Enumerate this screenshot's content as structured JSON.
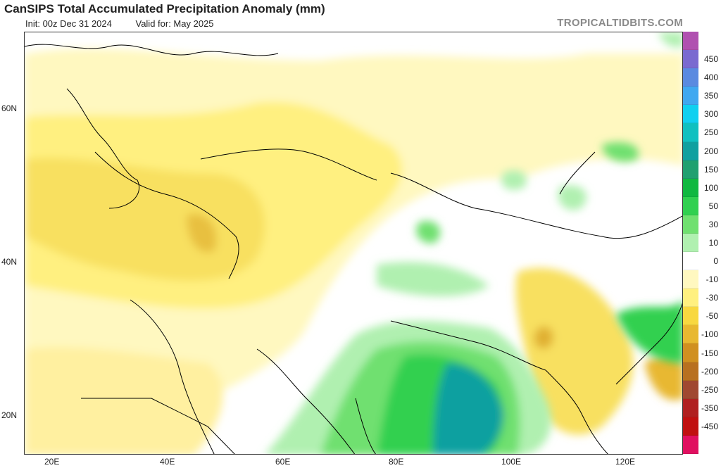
{
  "header": {
    "title": "CanSIPS Total Accumulated Precipitation Anomaly (mm)",
    "init": "Init: 00z Dec 31 2024",
    "valid": "Valid for: May 2025",
    "brand": "TROPICALTIDBITS.COM"
  },
  "axes": {
    "lat_labels": [
      "60N",
      "40N",
      "20N"
    ],
    "lon_labels": [
      "20E",
      "40E",
      "60E",
      "80E",
      "100E",
      "120E"
    ]
  },
  "colorbar": {
    "labels": [
      "450",
      "400",
      "350",
      "300",
      "250",
      "200",
      "150",
      "100",
      "50",
      "30",
      "10",
      "0",
      "-10",
      "-30",
      "-50",
      "-100",
      "-150",
      "-200",
      "-250",
      "-350",
      "-450"
    ],
    "colors": [
      "#b050b0",
      "#7a6ad0",
      "#5a8ae0",
      "#40a8f0",
      "#10d0f0",
      "#10c0c0",
      "#10a0a0",
      "#20a070",
      "#10b840",
      "#30d050",
      "#70e070",
      "#b0f0b0",
      "#ffffff",
      "#fff8c0",
      "#fff080",
      "#f8d840",
      "#e8b830",
      "#d09020",
      "#b87020",
      "#a04830",
      "#b02020",
      "#c01010",
      "#e01060"
    ]
  }
}
